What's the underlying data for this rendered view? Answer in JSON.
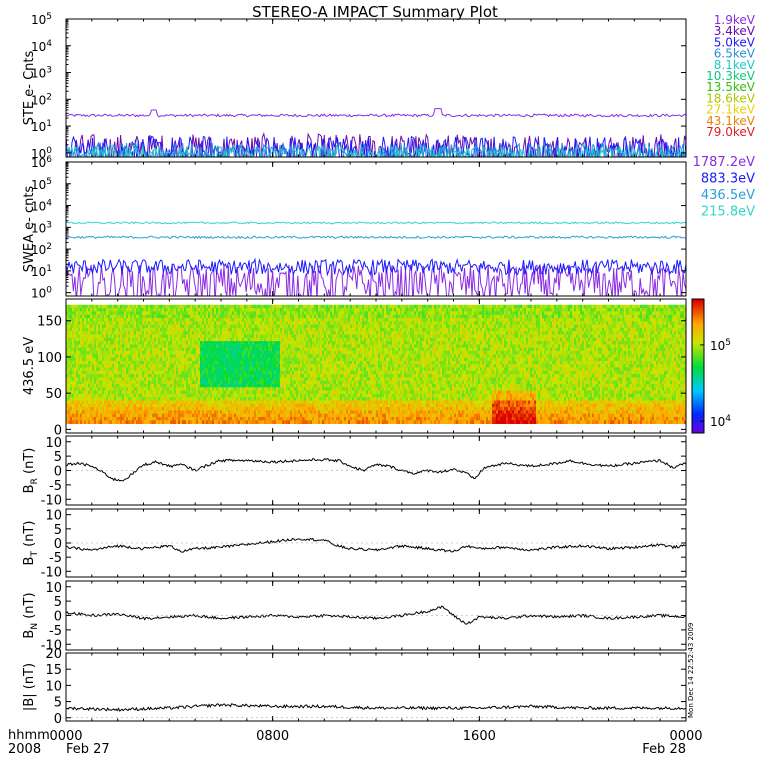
{
  "title": "STEREO-A IMPACT Summary Plot",
  "timestamp_note": "Mon Dec 14 22:52:43 2009",
  "footer": {
    "left_line1": "hhmm",
    "left_line2": "2008",
    "date_start": "Feb 27",
    "date_end": "Feb 28"
  },
  "x_axis": {
    "range_hours": [
      0,
      24
    ],
    "ticks": [
      {
        "hour": 0,
        "label": "0000"
      },
      {
        "hour": 8,
        "label": "0800"
      },
      {
        "hour": 16,
        "label": "1600"
      },
      {
        "hour": 24,
        "label": "0000"
      }
    ]
  },
  "chart_data": [
    {
      "type": "line",
      "ylabel": "STE e- Cnts",
      "yscale": "log",
      "ylim": [
        0.7,
        100000
      ],
      "ytick_exponents": [
        0,
        1,
        2,
        3,
        4,
        5
      ],
      "legend_placement": "right",
      "series": [
        {
          "name": "1.9keV",
          "color": "#8a2be2",
          "baseline": 25,
          "noise": 0.05,
          "spikes": [
            [
              3.4,
              40
            ],
            [
              14.4,
              45
            ]
          ]
        },
        {
          "name": "3.4keV",
          "color": "#6a0dad",
          "baseline": 1.3,
          "noise": 0.6
        },
        {
          "name": "5.0keV",
          "color": "#1a1aff",
          "baseline": 1.1,
          "noise": 0.6
        },
        {
          "name": "6.5keV",
          "color": "#2a8fd8",
          "baseline": 0.95,
          "noise": 0.4
        },
        {
          "name": "8.1keV",
          "color": "#20c8c8",
          "baseline": 0.9,
          "noise": 0.3
        },
        {
          "name": "10.3keV",
          "color": "#10c878"
        },
        {
          "name": "13.5keV",
          "color": "#30c010"
        },
        {
          "name": "18.6keV",
          "color": "#a8c800"
        },
        {
          "name": "27.1keV",
          "color": "#f0d000"
        },
        {
          "name": "43.1keV",
          "color": "#f08000"
        },
        {
          "name": "79.0keV",
          "color": "#e02020"
        }
      ]
    },
    {
      "type": "line",
      "ylabel": "SWEA e- cnts",
      "yscale": "log",
      "ylim": [
        0.7,
        1000000
      ],
      "ytick_exponents": [
        0,
        1,
        2,
        3,
        4,
        5,
        6
      ],
      "legend_placement": "right",
      "series": [
        {
          "name": "1787.2eV",
          "color": "#8a2be2",
          "baseline": 2.5,
          "noise": 0.9
        },
        {
          "name": "883.3eV",
          "color": "#1a1aff",
          "baseline": 15,
          "noise": 0.35
        },
        {
          "name": "436.5eV",
          "color": "#2a9fd8",
          "baseline": 350,
          "noise": 0.05
        },
        {
          "name": "215.8eV",
          "color": "#30d8c8",
          "baseline": 1600,
          "noise": 0.04
        }
      ]
    },
    {
      "type": "heatmap",
      "ylabel": "436.5 eV",
      "ylim": [
        -5,
        180
      ],
      "yticks": [
        0,
        50,
        100,
        150
      ],
      "colorbar": {
        "scale": "log",
        "range": [
          7000,
          400000
        ],
        "ticks": [
          {
            "exp": 4,
            "label": "10^4"
          },
          {
            "exp": 5,
            "label": "10^5"
          }
        ]
      }
    },
    {
      "type": "line",
      "ylabel": "B_R (nT)",
      "ylabel_main": "B",
      "ylabel_sub": "R",
      "ylabel_unit": "(nT)",
      "ylim": [
        -12,
        12
      ],
      "yticks": [
        -10,
        -5,
        0,
        5,
        10
      ],
      "series": [
        {
          "name": "",
          "color": "#000000",
          "points": [
            [
              0,
              2
            ],
            [
              0.5,
              2.5
            ],
            [
              1,
              1.5
            ],
            [
              1.5,
              -1
            ],
            [
              1.8,
              -3
            ],
            [
              2.2,
              -3.5
            ],
            [
              2.6,
              -1
            ],
            [
              3,
              2
            ],
            [
              3.5,
              3
            ],
            [
              4,
              1.5
            ],
            [
              4.5,
              2
            ],
            [
              5,
              0
            ],
            [
              5.5,
              2
            ],
            [
              6,
              3.5
            ],
            [
              7,
              3.5
            ],
            [
              8,
              3
            ],
            [
              9,
              3.5
            ],
            [
              10,
              3.8
            ],
            [
              10.6,
              3.3
            ],
            [
              11,
              1.5
            ],
            [
              11.5,
              0
            ],
            [
              12,
              2
            ],
            [
              12.5,
              1.5
            ],
            [
              13,
              0
            ],
            [
              13.5,
              -1
            ],
            [
              14,
              0
            ],
            [
              14.5,
              -0.5
            ],
            [
              15,
              0.5
            ],
            [
              15.5,
              -1
            ],
            [
              15.8,
              -3
            ],
            [
              16.2,
              1
            ],
            [
              17,
              2.5
            ],
            [
              18,
              1.5
            ],
            [
              19,
              2.5
            ],
            [
              19.5,
              3.5
            ],
            [
              20,
              2.5
            ],
            [
              21,
              1.5
            ],
            [
              22,
              2.5
            ],
            [
              23,
              3.5
            ],
            [
              23.5,
              1
            ],
            [
              24,
              2.5
            ]
          ]
        }
      ]
    },
    {
      "type": "line",
      "ylabel": "B_T (nT)",
      "ylabel_main": "B",
      "ylabel_sub": "T",
      "ylabel_unit": "(nT)",
      "ylim": [
        -12,
        12
      ],
      "yticks": [
        -10,
        -5,
        0,
        5,
        10
      ],
      "series": [
        {
          "name": "",
          "color": "#000000",
          "points": [
            [
              0,
              -1.5
            ],
            [
              1,
              -2.5
            ],
            [
              2,
              -1
            ],
            [
              3,
              -2
            ],
            [
              4,
              -1
            ],
            [
              4.5,
              -3
            ],
            [
              5,
              -2
            ],
            [
              6,
              -1.5
            ],
            [
              7,
              -0.5
            ],
            [
              8,
              0.5
            ],
            [
              9,
              1.5
            ],
            [
              10,
              1
            ],
            [
              10.5,
              -1
            ],
            [
              11,
              -2
            ],
            [
              12,
              -2.5
            ],
            [
              13,
              -1
            ],
            [
              14,
              -2
            ],
            [
              15,
              -3
            ],
            [
              15.5,
              -1
            ],
            [
              16,
              -2
            ],
            [
              17,
              -1.5
            ],
            [
              18,
              -2.5
            ],
            [
              19,
              -1.5
            ],
            [
              20,
              -1
            ],
            [
              21,
              -2
            ],
            [
              22,
              -1.5
            ],
            [
              23,
              -0.5
            ],
            [
              23.5,
              -1.5
            ],
            [
              24,
              -1
            ]
          ]
        }
      ]
    },
    {
      "type": "line",
      "ylabel": "B_N (nT)",
      "ylabel_main": "B",
      "ylabel_sub": "N",
      "ylabel_unit": "(nT)",
      "ylim": [
        -12,
        12
      ],
      "yticks": [
        -10,
        -5,
        0,
        5,
        10
      ],
      "series": [
        {
          "name": "",
          "color": "#000000",
          "points": [
            [
              0,
              1
            ],
            [
              1,
              0
            ],
            [
              2,
              0.5
            ],
            [
              3,
              -1
            ],
            [
              4,
              -0.5
            ],
            [
              5,
              0
            ],
            [
              6,
              -1
            ],
            [
              7,
              -0.5
            ],
            [
              8,
              0
            ],
            [
              9,
              -0.5
            ],
            [
              10,
              0
            ],
            [
              11,
              -0.5
            ],
            [
              12,
              -1
            ],
            [
              13,
              0
            ],
            [
              14,
              1.5
            ],
            [
              14.6,
              3
            ],
            [
              15,
              0
            ],
            [
              15.5,
              -3
            ],
            [
              16,
              -0.5
            ],
            [
              17,
              -1
            ],
            [
              18,
              0
            ],
            [
              19,
              -0.5
            ],
            [
              20,
              0
            ],
            [
              21,
              -1
            ],
            [
              22,
              -0.5
            ],
            [
              23,
              0
            ],
            [
              24,
              -0.5
            ]
          ]
        }
      ]
    },
    {
      "type": "line",
      "ylabel": "|B| (nT)",
      "ylim": [
        -1,
        20
      ],
      "yticks": [
        0,
        5,
        10,
        15,
        20
      ],
      "series": [
        {
          "name": "",
          "color": "#000000",
          "points": [
            [
              0,
              3
            ],
            [
              2,
              2.5
            ],
            [
              4,
              3
            ],
            [
              6,
              4
            ],
            [
              8,
              3.5
            ],
            [
              10,
              3.5
            ],
            [
              12,
              3
            ],
            [
              14,
              3
            ],
            [
              16,
              3
            ],
            [
              18,
              3.5
            ],
            [
              20,
              3
            ],
            [
              22,
              3
            ],
            [
              24,
              3
            ]
          ]
        }
      ]
    }
  ]
}
